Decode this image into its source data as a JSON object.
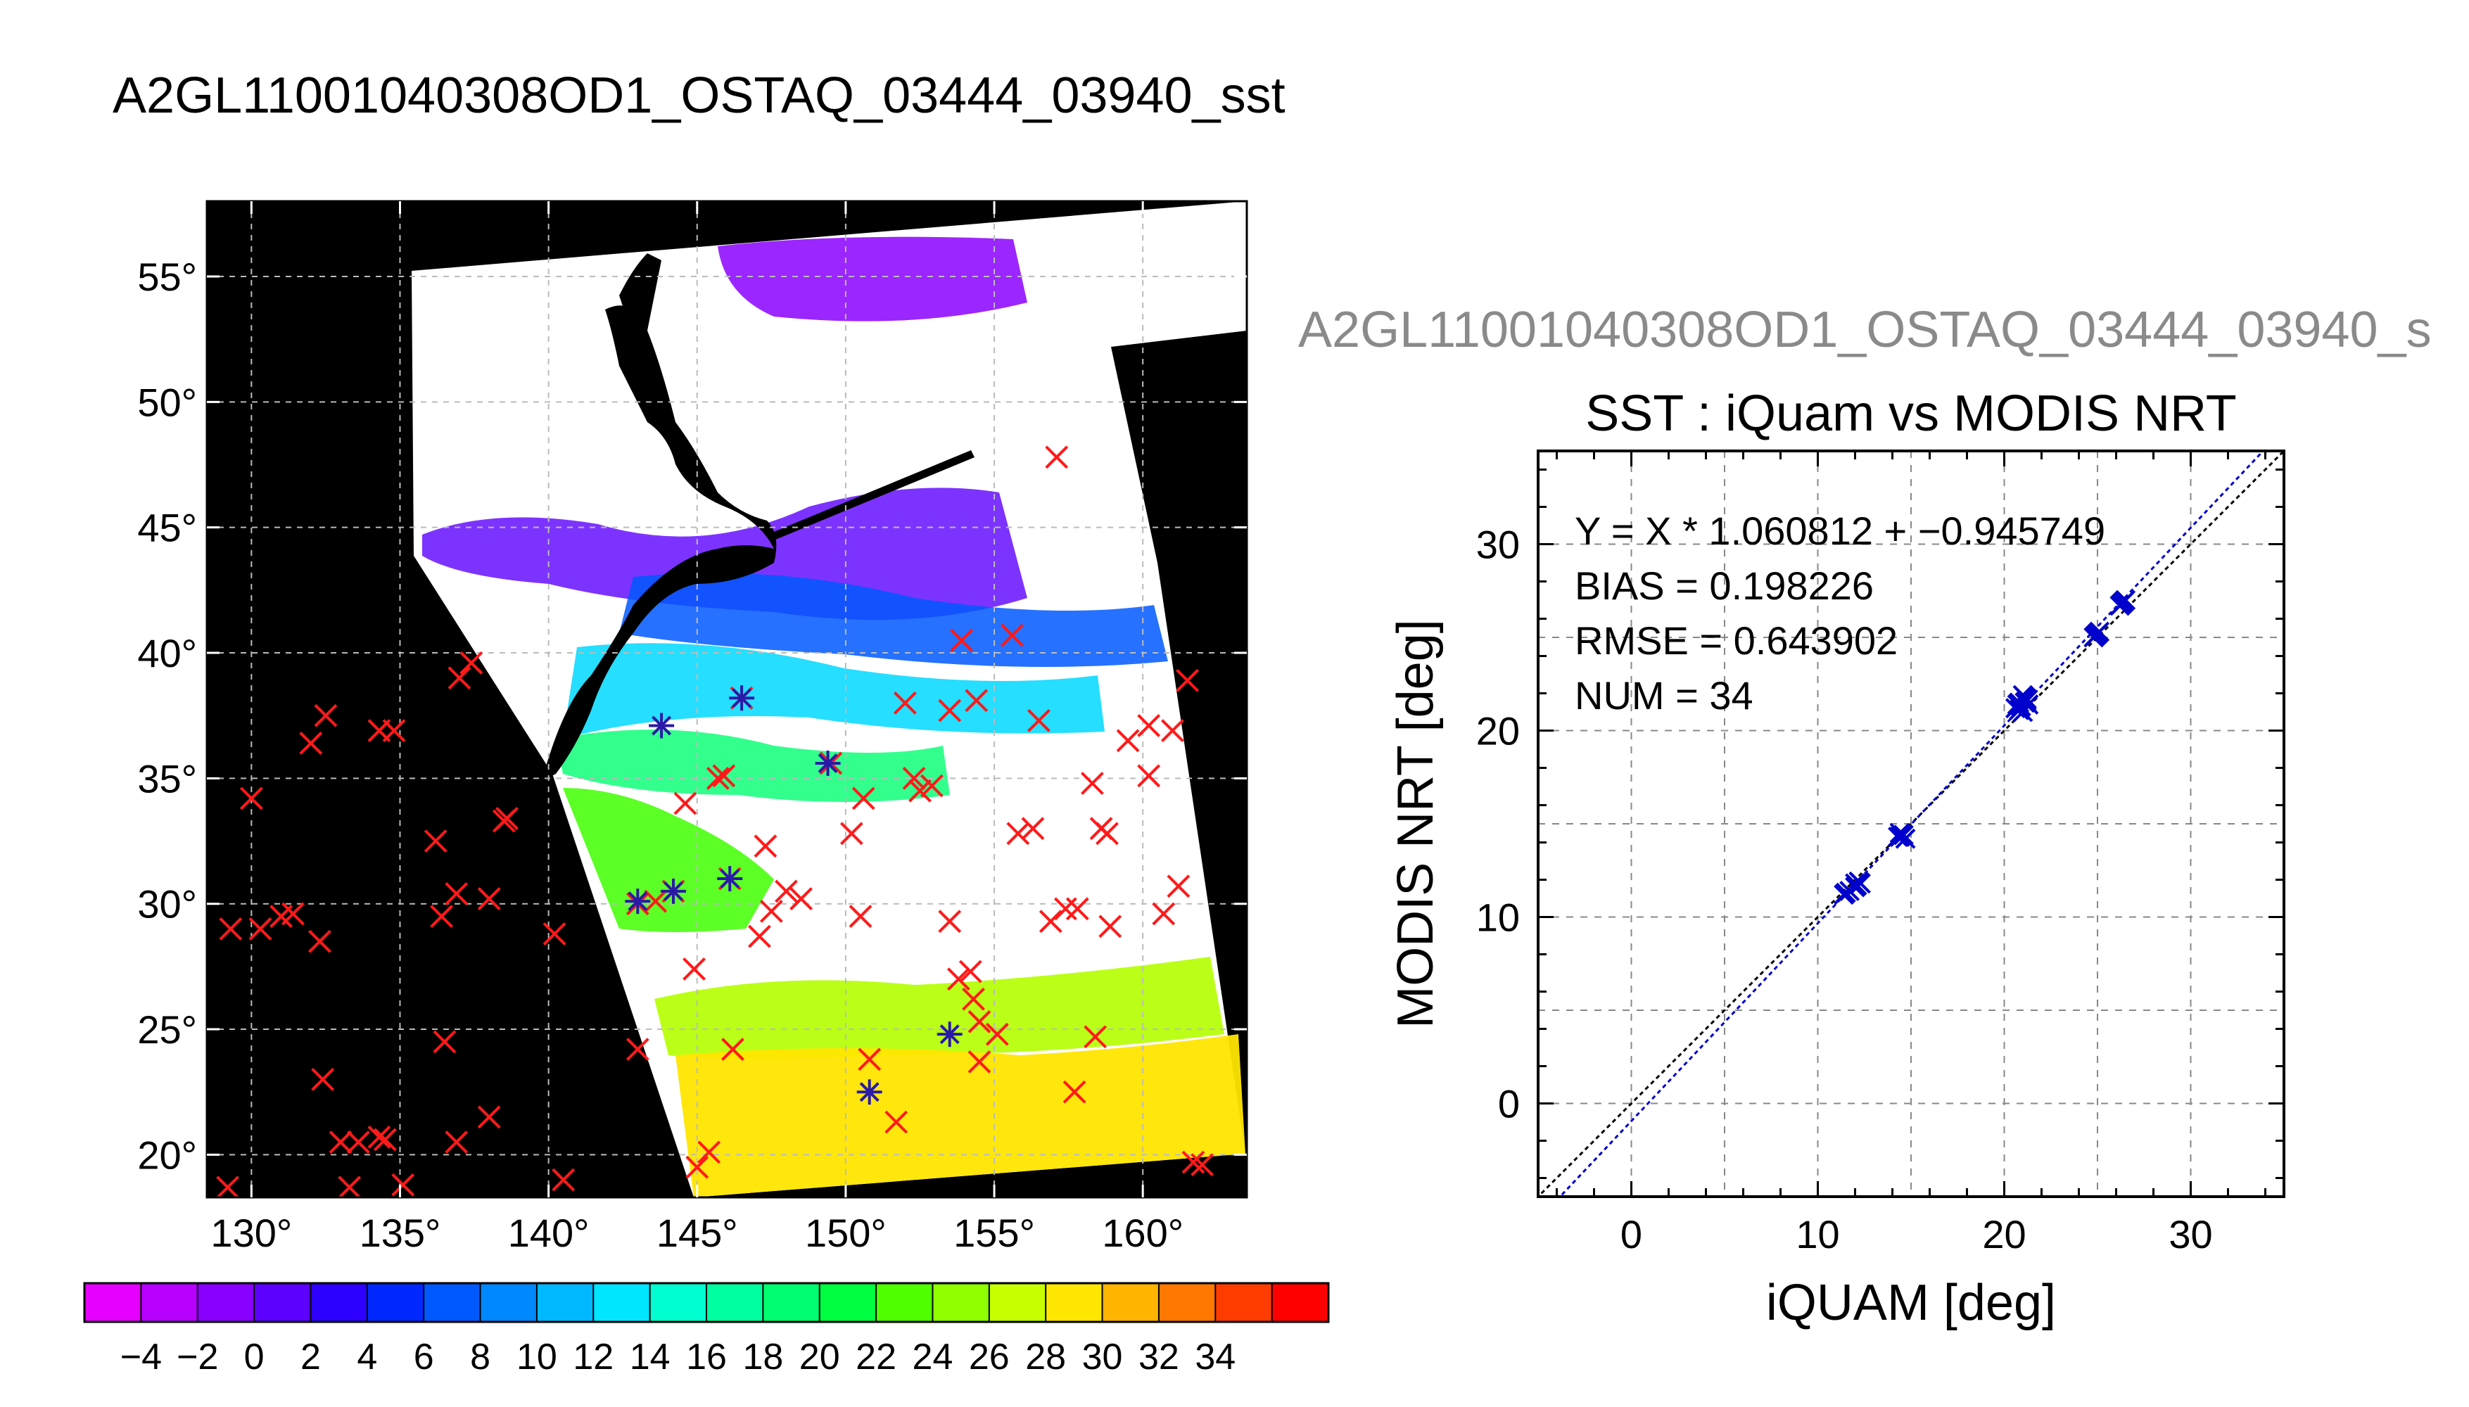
{
  "main_title": "A2GL11001040308OD1_OSTAQ_03444_03940_sst",
  "secondary_title": "A2GL11001040308OD1_OSTAQ_03444_03940_s",
  "map": {
    "lon_ticks": [
      "130°",
      "135°",
      "140°",
      "145°",
      "150°",
      "155°",
      "160°"
    ],
    "lat_ticks": [
      "55°",
      "50°",
      "45°",
      "40°",
      "35°",
      "30°",
      "25°",
      "20°"
    ],
    "colorbar_labels": [
      "−4",
      "−2",
      "0",
      "2",
      "4",
      "6",
      "8",
      "10",
      "12",
      "14",
      "16",
      "18",
      "20",
      "22",
      "24",
      "26",
      "28",
      "30",
      "32",
      "34"
    ],
    "colorbar_colors": [
      "#e600ff",
      "#b700ff",
      "#8a00ff",
      "#5c00ff",
      "#2d00ff",
      "#0028ff",
      "#0058ff",
      "#0088ff",
      "#00b8ff",
      "#00e6ff",
      "#00ffd0",
      "#00ffa0",
      "#00ff70",
      "#00ff40",
      "#50ff00",
      "#90ff00",
      "#c8ff00",
      "#ffe600",
      "#ffb400",
      "#ff7800",
      "#ff3c00",
      "#ff0000"
    ],
    "obs_red_x": [
      [
        129.2,
        18.7
      ],
      [
        130,
        34.2
      ],
      [
        129.3,
        29
      ],
      [
        130.3,
        29
      ],
      [
        131,
        29.5
      ],
      [
        131.4,
        29.6
      ],
      [
        132,
        36.4
      ],
      [
        132.5,
        37.5
      ],
      [
        132.3,
        28.5
      ],
      [
        132.4,
        23
      ],
      [
        133,
        20.5
      ],
      [
        133.6,
        20.5
      ],
      [
        133.3,
        18.7
      ],
      [
        134.3,
        20.7
      ],
      [
        134.5,
        20.6
      ],
      [
        134.3,
        36.9
      ],
      [
        134.8,
        36.9
      ],
      [
        135.1,
        18.8
      ],
      [
        136.2,
        32.5
      ],
      [
        136.5,
        24.5
      ],
      [
        136.4,
        29.5
      ],
      [
        136.9,
        30.4
      ],
      [
        136.9,
        20.5
      ],
      [
        137,
        39
      ],
      [
        137.4,
        39.6
      ],
      [
        138,
        21.5
      ],
      [
        138,
        30.2
      ],
      [
        138.5,
        33.3
      ],
      [
        138.6,
        33.4
      ],
      [
        140.2,
        28.8
      ],
      [
        140.5,
        19
      ],
      [
        143,
        24.2
      ],
      [
        143,
        30
      ],
      [
        143.6,
        30.1
      ],
      [
        144.2,
        30.5
      ],
      [
        144.6,
        34
      ],
      [
        144.9,
        27.4
      ],
      [
        145,
        19.5
      ],
      [
        145.4,
        20.1
      ],
      [
        145.7,
        35
      ],
      [
        145.9,
        35.1
      ],
      [
        146.1,
        31
      ],
      [
        146.2,
        24.2
      ],
      [
        146.5,
        38.2
      ],
      [
        147.3,
        32.3
      ],
      [
        147.1,
        28.7
      ],
      [
        147.5,
        29.7
      ],
      [
        148,
        30.5
      ],
      [
        148.5,
        30.2
      ],
      [
        149.5,
        35.6
      ],
      [
        150.2,
        32.8
      ],
      [
        150.5,
        29.5
      ],
      [
        150.6,
        34.2
      ],
      [
        150.8,
        23.8
      ],
      [
        151.7,
        21.3
      ],
      [
        152,
        38
      ],
      [
        152.5,
        34.5
      ],
      [
        152.3,
        35
      ],
      [
        152.9,
        34.7
      ],
      [
        153.5,
        29.3
      ],
      [
        153.5,
        37.7
      ],
      [
        153.8,
        27
      ],
      [
        154.3,
        26.2
      ],
      [
        154.4,
        38.1
      ],
      [
        154.5,
        23.7
      ],
      [
        154.2,
        27.3
      ],
      [
        154.5,
        25.3
      ],
      [
        155.1,
        24.8
      ],
      [
        155.6,
        40.7
      ],
      [
        155.8,
        32.8
      ],
      [
        156.5,
        37.3
      ],
      [
        156.3,
        33
      ],
      [
        156.9,
        29.3
      ],
      [
        157.4,
        29.8
      ],
      [
        157.8,
        29.8
      ],
      [
        157.7,
        22.5
      ],
      [
        158.4,
        24.7
      ],
      [
        158.6,
        33
      ],
      [
        158.8,
        32.8
      ],
      [
        158.3,
        34.8
      ],
      [
        158.9,
        29.1
      ],
      [
        159.5,
        36.5
      ],
      [
        160.2,
        37.1
      ],
      [
        160.2,
        35.1
      ],
      [
        160.7,
        29.6
      ],
      [
        161,
        36.9
      ],
      [
        161.2,
        30.7
      ],
      [
        161.5,
        38.9
      ],
      [
        161.7,
        19.7
      ],
      [
        162,
        19.6
      ],
      [
        157.1,
        47.8
      ],
      [
        153.9,
        40.5
      ]
    ],
    "obs_blue_star": [
      [
        143,
        30.1
      ],
      [
        144.2,
        30.5
      ],
      [
        143.8,
        37.1
      ],
      [
        146.1,
        31
      ],
      [
        146.5,
        38.2
      ],
      [
        149.4,
        35.6
      ],
      [
        150.8,
        22.5
      ],
      [
        153.5,
        24.8
      ]
    ]
  },
  "scatter_title": "SST : iQuam vs MODIS NRT",
  "stats": {
    "fit_line": "Y = X * 1.060812 + −0.945749",
    "bias": "BIAS = 0.198226",
    "rmse": "RMSE = 0.643902",
    "num": "NUM = 34"
  },
  "chart_data": {
    "type": "scatter",
    "title": "SST : iQuam vs MODIS NRT",
    "xlabel": "iQUAM [deg]",
    "ylabel": "MODIS NRT [deg]",
    "xlim": [
      -5,
      35
    ],
    "ylim": [
      -5,
      35
    ],
    "x_ticks": [
      "0",
      "10",
      "20",
      "30"
    ],
    "y_ticks": [
      "0",
      "10",
      "20",
      "30"
    ],
    "grid": true,
    "fit": {
      "slope": 1.060812,
      "intercept": -0.945749,
      "color": "#0000cc"
    },
    "reference_line": {
      "slope": 1,
      "intercept": 0,
      "color": "#000000"
    },
    "points": [
      [
        11.4,
        11.2
      ],
      [
        11.7,
        11.4
      ],
      [
        12.0,
        11.6
      ],
      [
        12.2,
        11.9
      ],
      [
        12.1,
        11.7
      ],
      [
        14.3,
        14.3
      ],
      [
        14.5,
        14.4
      ],
      [
        14.7,
        14.2
      ],
      [
        14.4,
        14.5
      ],
      [
        20.6,
        21.2
      ],
      [
        20.8,
        21.5
      ],
      [
        21.0,
        21.0
      ],
      [
        21.1,
        21.8
      ],
      [
        21.3,
        21.4
      ],
      [
        21.0,
        21.9
      ],
      [
        20.9,
        21.3
      ],
      [
        21.2,
        21.6
      ],
      [
        24.8,
        25.0
      ],
      [
        25.0,
        25.2
      ],
      [
        26.4,
        26.9
      ],
      [
        26.2,
        26.7
      ],
      [
        11.5,
        11.3
      ],
      [
        12.3,
        11.8
      ],
      [
        14.6,
        14.4
      ],
      [
        20.7,
        21.4
      ],
      [
        21.2,
        21.7
      ],
      [
        24.9,
        25.1
      ],
      [
        26.3,
        26.8
      ],
      [
        21.1,
        21.5
      ],
      [
        20.8,
        21.1
      ],
      [
        14.4,
        14.3
      ],
      [
        12.0,
        11.8
      ],
      [
        25.1,
        25.3
      ],
      [
        26.5,
        27.0
      ]
    ],
    "point_color": "#0000cc"
  }
}
